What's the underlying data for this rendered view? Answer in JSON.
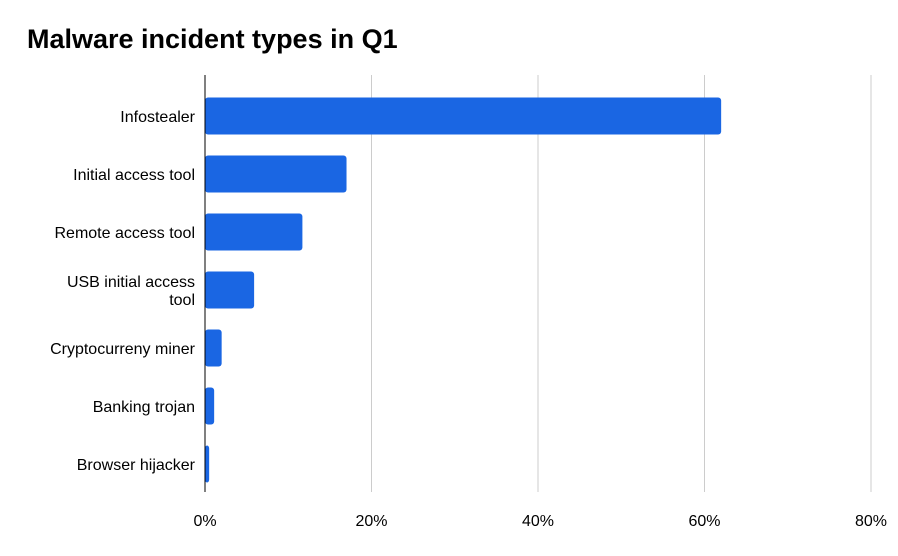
{
  "chart_data": {
    "type": "bar",
    "orientation": "horizontal",
    "title": "Malware incident types in Q1",
    "xlabel": "",
    "ylabel": "",
    "categories": [
      "Infostealer",
      "Initial access tool",
      "Remote access tool",
      "USB initial access tool",
      "Cryptocurreny miner",
      "Banking trojan",
      "Browser hijacker"
    ],
    "values": [
      62,
      17,
      11.7,
      5.9,
      2,
      1.1,
      0.5
    ],
    "value_unit": "%",
    "xlim": [
      0,
      80
    ],
    "x_ticks": [
      "0%",
      "20%",
      "40%",
      "60%",
      "80%"
    ],
    "grid": true,
    "legend": "none",
    "bar_color": "#1a66e3"
  }
}
